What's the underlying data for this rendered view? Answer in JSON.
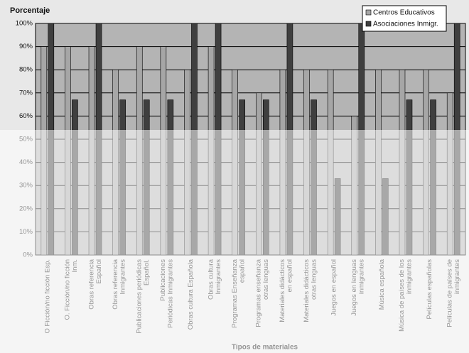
{
  "chart_data": {
    "type": "bar",
    "y_label": "Porcentaje",
    "x_label": "Tipos de materiales",
    "categories": [
      [
        "O Ficción/no ficción Esp."
      ],
      [
        "O. Ficción/no ficción",
        "Inm."
      ],
      [
        "Obras referencia",
        "Español"
      ],
      [
        "Obras referencia",
        "Inmigrantes"
      ],
      [
        "Publicaciones periódicas",
        "Español."
      ],
      [
        "Publicaciones",
        "Periódicas Inmigrantes"
      ],
      [
        "Obras cultura Española"
      ],
      [
        "Obras cultura",
        "Inmigrantes"
      ],
      [
        "Programas Enseñanza",
        "español"
      ],
      [
        "Programas enseñanza",
        "otras lenguas"
      ],
      [
        "Materiales didácticos",
        "en español"
      ],
      [
        "Materiales didácticos",
        "otras lenguas"
      ],
      [
        "Juegos en español"
      ],
      [
        "Juegos en lenguas",
        "inmigrantes"
      ],
      [
        "Música española"
      ],
      [
        "Música de países de los",
        "inmigrantes"
      ],
      [
        "Películas españolas"
      ],
      [
        "Películas de países de",
        "inmigrantes"
      ]
    ],
    "series": [
      {
        "name": "Centros Educativos",
        "color": "#a6a6a6",
        "values": [
          90,
          90,
          90,
          80,
          90,
          90,
          80,
          90,
          80,
          70,
          80,
          80,
          80,
          60,
          80,
          80,
          80,
          70
        ]
      },
      {
        "name": "Asociaciones Inmigr.",
        "color": "#3f3f3f",
        "values": [
          100,
          67,
          100,
          67,
          67,
          67,
          100,
          100,
          67,
          67,
          100,
          67,
          33,
          100,
          33,
          67,
          67,
          100
        ]
      }
    ],
    "ylim": [
      0,
      100
    ],
    "yticks": [
      {
        "value": 0,
        "label": "0%"
      },
      {
        "value": 10,
        "label": "10%"
      },
      {
        "value": 20,
        "label": "20%"
      },
      {
        "value": 30,
        "label": "30%"
      },
      {
        "value": 40,
        "label": "40%"
      },
      {
        "value": 50,
        "label": "50%"
      },
      {
        "value": 60,
        "label": "60%"
      },
      {
        "value": 70,
        "label": "70%"
      },
      {
        "value": 80,
        "label": "80%"
      },
      {
        "value": 90,
        "label": "90%"
      },
      {
        "value": 100,
        "label": "100%"
      }
    ],
    "grid": true,
    "legend": "top-right"
  }
}
